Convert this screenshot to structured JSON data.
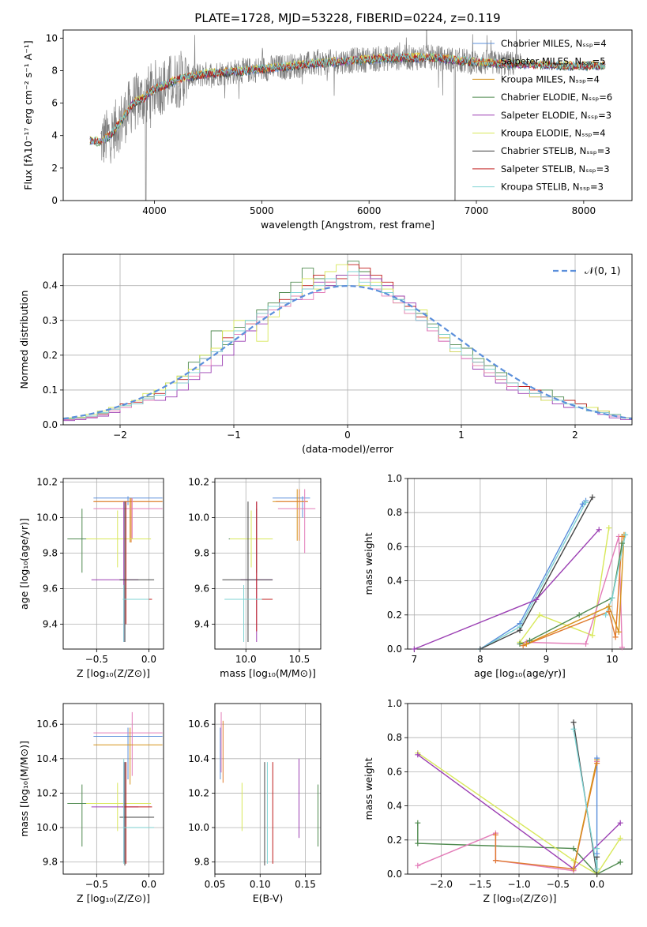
{
  "colors": {
    "Chabrier MILES": "#5b8fdb",
    "Salpeter MILES": "#e07a2e",
    "Kroupa MILES": "#d6921a",
    "Chabrier ELODIE": "#4f8a4f",
    "Salpeter ELODIE": "#9b3fb3",
    "Kroupa ELODIE": "#d8e85a",
    "Chabrier STELIB": "#444444",
    "Salpeter STELIB": "#c01c1c",
    "Kroupa STELIB": "#7fd3d3",
    "normal": "#5b8fdb",
    "pink": "#e37cb8"
  },
  "chart_data": [
    {
      "type": "line",
      "id": "spectrum",
      "title": "PLATE=1728, MJD=53228, FIBERID=0224, z=0.119",
      "xlabel": "wavelength [Angstrom, rest frame]",
      "ylabel": "Flux [fλ10⁻¹⁷ erg cm⁻² s⁻¹ A⁻¹]",
      "xlim": [
        3150,
        8450
      ],
      "ylim": [
        0,
        10.5
      ],
      "xticks": [
        4000,
        5000,
        6000,
        7000,
        8000
      ],
      "yticks": [
        0,
        2,
        4,
        6,
        8,
        10
      ],
      "legend_position": "top-right",
      "legend": [
        "Chabrier MILES, Nₛₛₚ=4",
        "Salpeter MILES, Nₛₛₚ=5",
        "Kroupa MILES, Nₛₛₚ=4",
        "Chabrier ELODIE, Nₛₛₚ=6",
        "Salpeter ELODIE, Nₛₛₚ=3",
        "Kroupa ELODIE, Nₛₛₚ=4",
        "Chabrier STELIB, Nₛₛₚ=3",
        "Salpeter STELIB, Nₛₛₚ=3",
        "Kroupa STELIB, Nₛₛₚ=3"
      ],
      "legend_series": [
        "Chabrier MILES",
        "Salpeter MILES",
        "Kroupa MILES",
        "Chabrier ELODIE",
        "Salpeter ELODIE",
        "Kroupa ELODIE",
        "Chabrier STELIB",
        "Salpeter STELIB",
        "Kroupa STELIB"
      ],
      "data_envelope": {
        "x": [
          3400,
          3500,
          3600,
          3700,
          3800,
          3900,
          4000,
          4100,
          4200,
          4300,
          4500,
          4700,
          5000,
          5300,
          5600,
          6000,
          6300,
          6600,
          7000,
          7400,
          7800,
          8200
        ],
        "y": [
          3.7,
          3.6,
          4.1,
          5.0,
          6.0,
          6.3,
          6.9,
          7.1,
          7.4,
          7.6,
          7.8,
          7.9,
          8.1,
          8.3,
          8.5,
          8.7,
          8.8,
          8.8,
          8.5,
          8.4,
          8.3,
          8.3
        ]
      },
      "model_range": [
        3400,
        8200
      ],
      "data_range": [
        3500,
        7420
      ]
    },
    {
      "type": "bar",
      "id": "residuals",
      "xlabel": "(data-model)/error",
      "ylabel": "Normed distribution",
      "xlim": [
        -2.5,
        2.5
      ],
      "ylim": [
        0,
        0.49
      ],
      "xticks": [
        -2,
        -1,
        0,
        1,
        2
      ],
      "yticks": [
        0.0,
        0.1,
        0.2,
        0.3,
        0.4
      ],
      "legend": [
        "𝒩(0, 1)"
      ],
      "legend_position": "top-right",
      "bin_width": 0.1,
      "bin_start": -2.5
    },
    {
      "type": "scatter",
      "id": "age-vs-Z",
      "xlabel": "Z [log₁₀(Z/Z⊙)]",
      "ylabel": "age  [log₁₀(age/yr)]",
      "xlim": [
        -0.82,
        0.14
      ],
      "ylim": [
        9.26,
        10.22
      ],
      "xticks": [
        -0.5,
        0.0
      ],
      "yticks": [
        9.4,
        9.6,
        9.8,
        10.0,
        10.2
      ]
    },
    {
      "type": "scatter",
      "id": "age-vs-mass",
      "xlabel": "mass [log₁₀(M/M⊙)]",
      "ylabel": "",
      "xlim": [
        9.71,
        10.7
      ],
      "ylim": [
        9.26,
        10.22
      ],
      "xticks": [
        10.0,
        10.5
      ],
      "yticks": [
        9.4,
        9.6,
        9.8,
        10.0,
        10.2
      ]
    },
    {
      "type": "line",
      "id": "weight-vs-age",
      "xlabel": "age  [log₁₀(age/yr)]",
      "ylabel": "mass weight",
      "xlim": [
        6.9,
        10.3
      ],
      "ylim": [
        0,
        1.0
      ],
      "xticks": [
        7,
        8,
        9,
        10
      ],
      "yticks": [
        0.0,
        0.2,
        0.4,
        0.6,
        0.8,
        1.0
      ]
    },
    {
      "type": "scatter",
      "id": "mass-vs-Z",
      "xlabel": "Z [log₁₀(Z/Z⊙)]",
      "ylabel": "mass [log₁₀(M/M⊙)]",
      "xlim": [
        -0.82,
        0.14
      ],
      "ylim": [
        9.73,
        10.72
      ],
      "xticks": [
        -0.5,
        0.0
      ],
      "yticks": [
        9.8,
        10.0,
        10.2,
        10.4,
        10.6
      ]
    },
    {
      "type": "scatter",
      "id": "mass-vs-EBV",
      "xlabel": "E(B-V)",
      "ylabel": "",
      "xlim": [
        0.05,
        0.167
      ],
      "ylim": [
        9.73,
        10.72
      ],
      "xticks": [
        0.05,
        0.1,
        0.15
      ],
      "xticklabels": [
        "0.05",
        "0.10",
        "0.15"
      ],
      "yticks": [
        9.8,
        10.0,
        10.2,
        10.4,
        10.6
      ]
    },
    {
      "type": "line",
      "id": "weight-vs-Z",
      "xlabel": "Z [log₁₀(Z/Z⊙)]",
      "ylabel": "mass weight",
      "xlim": [
        -2.43,
        0.45
      ],
      "ylim": [
        0,
        1.0
      ],
      "xticks": [
        -2.0,
        -1.5,
        -1.0,
        -0.5,
        0.0
      ],
      "yticks": [
        0.0,
        0.2,
        0.4,
        0.6,
        0.8,
        1.0
      ]
    }
  ],
  "residual_hist": {
    "Chabrier ELODIE": [
      0.018,
      0.02,
      0.025,
      0.032,
      0.05,
      0.06,
      0.06,
      0.08,
      0.1,
      0.12,
      0.14,
      0.18,
      0.2,
      0.27,
      0.23,
      0.28,
      0.3,
      0.33,
      0.35,
      0.38,
      0.41,
      0.45,
      0.42,
      0.4,
      0.43,
      0.47,
      0.44,
      0.42,
      0.38,
      0.36,
      0.34,
      0.32,
      0.29,
      0.26,
      0.23,
      0.22,
      0.19,
      0.17,
      0.15,
      0.12,
      0.11,
      0.09,
      0.1,
      0.08,
      0.07,
      0.06,
      0.05,
      0.04,
      0.03,
      0.02
    ],
    "Salpeter STELIB": [
      0.015,
      0.018,
      0.022,
      0.03,
      0.045,
      0.06,
      0.065,
      0.075,
      0.09,
      0.1,
      0.13,
      0.16,
      0.19,
      0.22,
      0.25,
      0.27,
      0.29,
      0.32,
      0.33,
      0.36,
      0.37,
      0.4,
      0.43,
      0.41,
      0.42,
      0.46,
      0.45,
      0.43,
      0.41,
      0.37,
      0.34,
      0.31,
      0.28,
      0.25,
      0.22,
      0.2,
      0.18,
      0.16,
      0.14,
      0.12,
      0.11,
      0.1,
      0.08,
      0.07,
      0.07,
      0.06,
      0.05,
      0.04,
      0.03,
      0.02
    ],
    "Salpeter ELODIE": [
      0.012,
      0.015,
      0.02,
      0.025,
      0.035,
      0.05,
      0.06,
      0.07,
      0.07,
      0.08,
      0.1,
      0.13,
      0.15,
      0.17,
      0.2,
      0.24,
      0.27,
      0.29,
      0.33,
      0.35,
      0.36,
      0.39,
      0.41,
      0.4,
      0.43,
      0.44,
      0.43,
      0.42,
      0.4,
      0.37,
      0.35,
      0.3,
      0.27,
      0.24,
      0.21,
      0.19,
      0.16,
      0.14,
      0.12,
      0.1,
      0.09,
      0.08,
      0.07,
      0.06,
      0.05,
      0.05,
      0.04,
      0.03,
      0.02,
      0.015
    ],
    "Kroupa ELODIE": [
      0.02,
      0.022,
      0.03,
      0.04,
      0.05,
      0.055,
      0.07,
      0.09,
      0.1,
      0.12,
      0.14,
      0.16,
      0.2,
      0.22,
      0.27,
      0.3,
      0.29,
      0.24,
      0.31,
      0.34,
      0.37,
      0.42,
      0.39,
      0.44,
      0.46,
      0.43,
      0.4,
      0.41,
      0.39,
      0.35,
      0.32,
      0.33,
      0.28,
      0.25,
      0.21,
      0.2,
      0.17,
      0.15,
      0.13,
      0.11,
      0.1,
      0.08,
      0.07,
      0.07,
      0.06,
      0.05,
      0.05,
      0.04,
      0.03,
      0.02
    ],
    "Kroupa STELIB": [
      0.017,
      0.02,
      0.025,
      0.035,
      0.045,
      0.055,
      0.06,
      0.075,
      0.085,
      0.1,
      0.12,
      0.15,
      0.19,
      0.21,
      0.24,
      0.27,
      0.3,
      0.32,
      0.34,
      0.35,
      0.38,
      0.39,
      0.4,
      0.42,
      0.4,
      0.44,
      0.41,
      0.4,
      0.38,
      0.36,
      0.33,
      0.3,
      0.28,
      0.26,
      0.22,
      0.2,
      0.18,
      0.16,
      0.14,
      0.12,
      0.1,
      0.09,
      0.08,
      0.07,
      0.06,
      0.05,
      0.04,
      0.035,
      0.03,
      0.02
    ],
    "pink": [
      0.015,
      0.018,
      0.022,
      0.03,
      0.04,
      0.05,
      0.06,
      0.07,
      0.085,
      0.1,
      0.12,
      0.14,
      0.17,
      0.21,
      0.24,
      0.26,
      0.29,
      0.31,
      0.33,
      0.34,
      0.37,
      0.36,
      0.38,
      0.41,
      0.4,
      0.43,
      0.42,
      0.39,
      0.37,
      0.35,
      0.32,
      0.3,
      0.27,
      0.24,
      0.22,
      0.19,
      0.17,
      0.15,
      0.13,
      0.11,
      0.1,
      0.09,
      0.08,
      0.07,
      0.06,
      0.05,
      0.04,
      0.035,
      0.025,
      0.02
    ]
  },
  "crosses": {
    "age_Z": [
      {
        "s": "Chabrier MILES",
        "x": -0.2,
        "xlo": -0.53,
        "xhi": 0.13,
        "y": 10.11,
        "ylo": 10.07,
        "yhi": 10.12
      },
      {
        "s": "Kroupa MILES",
        "x": -0.18,
        "xlo": -0.53,
        "xhi": 0.13,
        "y": 10.09,
        "ylo": 9.86,
        "yhi": 10.11
      },
      {
        "s": "Salpeter MILES",
        "x": -0.17,
        "xlo": -0.53,
        "xhi": 0.13,
        "y": 10.09,
        "ylo": 9.86,
        "yhi": 10.11
      },
      {
        "s": "pink",
        "x": -0.16,
        "xlo": -0.53,
        "xhi": 0.13,
        "y": 10.05,
        "ylo": 9.88,
        "yhi": 10.11
      },
      {
        "s": "Chabrier ELODIE",
        "x": -0.64,
        "xlo": -0.78,
        "xhi": -0.35,
        "y": 9.88,
        "ylo": 9.69,
        "yhi": 10.05
      },
      {
        "s": "Kroupa ELODIE",
        "x": -0.3,
        "xlo": -0.6,
        "xhi": 0.02,
        "y": 9.88,
        "ylo": 9.72,
        "yhi": 10.04
      },
      {
        "s": "Salpeter ELODIE",
        "x": -0.24,
        "xlo": -0.55,
        "xhi": -0.1,
        "y": 9.65,
        "ylo": 9.3,
        "yhi": 10.09
      },
      {
        "s": "Chabrier STELIB",
        "x": -0.23,
        "xlo": -0.28,
        "xhi": 0.05,
        "y": 9.65,
        "ylo": 9.3,
        "yhi": 10.09
      },
      {
        "s": "Salpeter STELIB",
        "x": -0.22,
        "xlo": -0.25,
        "xhi": 0.03,
        "y": 9.54,
        "ylo": 9.4,
        "yhi": 10.09
      },
      {
        "s": "Kroupa STELIB",
        "x": -0.24,
        "xlo": -0.25,
        "xhi": 0.0,
        "y": 9.54,
        "ylo": 9.3,
        "yhi": 9.62
      }
    ],
    "age_mass": [
      {
        "s": "Chabrier MILES",
        "x": 10.53,
        "xlo": 10.25,
        "xhi": 10.6,
        "y": 10.11,
        "ylo": 10.0,
        "yhi": 10.12
      },
      {
        "s": "Kroupa MILES",
        "x": 10.48,
        "xlo": 10.25,
        "xhi": 10.58,
        "y": 10.09,
        "ylo": 9.87,
        "yhi": 10.16
      },
      {
        "s": "Salpeter MILES",
        "x": 10.5,
        "xlo": 10.28,
        "xhi": 10.58,
        "y": 10.09,
        "ylo": 9.87,
        "yhi": 10.16
      },
      {
        "s": "pink",
        "x": 10.55,
        "xlo": 10.3,
        "xhi": 10.65,
        "y": 10.05,
        "ylo": 9.8,
        "yhi": 10.16
      },
      {
        "s": "Chabrier ELODIE",
        "x": 10.1,
        "xlo": 9.84,
        "xhi": 10.25,
        "y": 9.88,
        "ylo": 9.69,
        "yhi": 10.05
      },
      {
        "s": "Kroupa ELODIE",
        "x": 10.05,
        "xlo": 9.85,
        "xhi": 10.25,
        "y": 9.88,
        "ylo": 9.72,
        "yhi": 10.04
      },
      {
        "s": "Salpeter ELODIE",
        "x": 10.1,
        "xlo": 9.95,
        "xhi": 10.25,
        "y": 9.65,
        "ylo": 9.3,
        "yhi": 10.09
      },
      {
        "s": "Chabrier STELIB",
        "x": 10.02,
        "xlo": 9.78,
        "xhi": 10.25,
        "y": 9.65,
        "ylo": 9.3,
        "yhi": 10.09
      },
      {
        "s": "Salpeter STELIB",
        "x": 10.1,
        "xlo": 9.9,
        "xhi": 10.25,
        "y": 9.54,
        "ylo": 9.36,
        "yhi": 10.09
      },
      {
        "s": "Kroupa STELIB",
        "x": 9.98,
        "xlo": 9.8,
        "xhi": 10.15,
        "y": 9.54,
        "ylo": 9.3,
        "yhi": 9.62
      }
    ],
    "mass_Z": [
      {
        "s": "Chabrier MILES",
        "x": -0.2,
        "xlo": -0.53,
        "xhi": 0.13,
        "y": 10.53,
        "ylo": 10.28,
        "yhi": 10.58
      },
      {
        "s": "pink",
        "x": -0.16,
        "xlo": -0.53,
        "xhi": 0.13,
        "y": 10.55,
        "ylo": 10.3,
        "yhi": 10.67
      },
      {
        "s": "Kroupa MILES",
        "x": -0.18,
        "xlo": -0.53,
        "xhi": 0.13,
        "y": 10.48,
        "ylo": 10.25,
        "yhi": 10.58
      },
      {
        "s": "Chabrier ELODIE",
        "x": -0.64,
        "xlo": -0.78,
        "xhi": -0.35,
        "y": 10.14,
        "ylo": 9.89,
        "yhi": 10.25
      },
      {
        "s": "Kroupa ELODIE",
        "x": -0.3,
        "xlo": -0.6,
        "xhi": 0.02,
        "y": 10.14,
        "ylo": 9.98,
        "yhi": 10.26
      },
      {
        "s": "Salpeter ELODIE",
        "x": -0.24,
        "xlo": -0.55,
        "xhi": -0.1,
        "y": 10.12,
        "ylo": 9.8,
        "yhi": 10.38
      },
      {
        "s": "Chabrier STELIB",
        "x": -0.23,
        "xlo": -0.28,
        "xhi": 0.05,
        "y": 10.06,
        "ylo": 9.78,
        "yhi": 10.38
      },
      {
        "s": "Salpeter STELIB",
        "x": -0.22,
        "xlo": -0.25,
        "xhi": 0.03,
        "y": 10.12,
        "ylo": 9.79,
        "yhi": 10.38
      },
      {
        "s": "Kroupa STELIB",
        "x": -0.24,
        "xlo": -0.25,
        "xhi": 0.05,
        "y": 10.0,
        "ylo": 9.79,
        "yhi": 10.4
      }
    ],
    "mass_ebv": [
      {
        "s": "pink",
        "x": 0.057,
        "ylo": 10.32,
        "yhi": 10.67
      },
      {
        "s": "Salpeter MILES",
        "x": 0.059,
        "ylo": 10.26,
        "yhi": 10.62
      },
      {
        "s": "Chabrier MILES",
        "x": 0.056,
        "ylo": 10.28,
        "yhi": 10.58
      },
      {
        "s": "Kroupa ELODIE",
        "x": 0.08,
        "ylo": 9.98,
        "yhi": 10.26
      },
      {
        "s": "Chabrier STELIB",
        "x": 0.105,
        "ylo": 9.78,
        "yhi": 10.38
      },
      {
        "s": "Kroupa STELIB",
        "x": 0.108,
        "ylo": 9.79,
        "yhi": 10.38
      },
      {
        "s": "Salpeter STELIB",
        "x": 0.114,
        "ylo": 9.79,
        "yhi": 10.38
      },
      {
        "s": "Salpeter ELODIE",
        "x": 0.143,
        "ylo": 9.94,
        "yhi": 10.4
      },
      {
        "s": "Chabrier ELODIE",
        "x": 0.164,
        "ylo": 9.89,
        "yhi": 10.25
      }
    ]
  },
  "weights_age": [
    {
      "s": "Chabrier MILES",
      "pts": [
        [
          8.0,
          0.0
        ],
        [
          8.6,
          0.15
        ],
        [
          9.55,
          0.85
        ],
        [
          9.6,
          0.87
        ]
      ]
    },
    {
      "s": "Kroupa STELIB",
      "pts": [
        [
          8.0,
          0.0
        ],
        [
          8.6,
          0.13
        ],
        [
          9.6,
          0.86
        ]
      ]
    },
    {
      "s": "Chabrier STELIB",
      "pts": [
        [
          8.0,
          0.0
        ],
        [
          8.6,
          0.11
        ],
        [
          9.7,
          0.89
        ]
      ]
    },
    {
      "s": "Salpeter ELODIE",
      "pts": [
        [
          7.0,
          0.0
        ],
        [
          8.85,
          0.29
        ],
        [
          9.8,
          0.7
        ]
      ]
    },
    {
      "s": "Kroupa ELODIE",
      "pts": [
        [
          8.6,
          0.04
        ],
        [
          8.9,
          0.2
        ],
        [
          9.7,
          0.08
        ],
        [
          9.95,
          0.71
        ]
      ]
    },
    {
      "s": "pink",
      "pts": [
        [
          8.7,
          0.04
        ],
        [
          9.6,
          0.03
        ],
        [
          10.1,
          0.66
        ],
        [
          10.15,
          0.01
        ]
      ]
    },
    {
      "s": "Salpeter MILES",
      "pts": [
        [
          8.65,
          0.02
        ],
        [
          9.95,
          0.22
        ],
        [
          10.05,
          0.07
        ],
        [
          10.15,
          0.66
        ]
      ]
    },
    {
      "s": "Kroupa MILES",
      "pts": [
        [
          8.7,
          0.03
        ],
        [
          9.95,
          0.25
        ],
        [
          10.1,
          0.1
        ],
        [
          10.18,
          0.67
        ]
      ]
    },
    {
      "s": "Chabrier ELODIE",
      "pts": [
        [
          8.6,
          0.03
        ],
        [
          8.75,
          0.05
        ],
        [
          9.5,
          0.2
        ],
        [
          10.0,
          0.3
        ],
        [
          10.15,
          0.62
        ]
      ]
    },
    {
      "s": "Kroupa STELIB",
      "pts": [
        [
          9.9,
          0.2
        ],
        [
          10.0,
          0.3
        ],
        [
          10.2,
          0.67
        ]
      ]
    }
  ],
  "weights_Z": [
    {
      "s": "Chabrier ELODIE",
      "pts": [
        [
          -2.3,
          0.3
        ],
        [
          -2.3,
          0.18
        ],
        [
          -0.3,
          0.15
        ],
        [
          0.0,
          0.0
        ],
        [
          0.3,
          0.07
        ]
      ]
    },
    {
      "s": "Kroupa ELODIE",
      "pts": [
        [
          -2.3,
          0.71
        ],
        [
          -0.3,
          0.08
        ],
        [
          0.0,
          0.0
        ],
        [
          0.3,
          0.21
        ]
      ]
    },
    {
      "s": "Salpeter ELODIE",
      "pts": [
        [
          -2.3,
          0.7
        ],
        [
          -0.3,
          0.03
        ],
        [
          0.3,
          0.3
        ]
      ]
    },
    {
      "s": "pink",
      "pts": [
        [
          -2.3,
          0.05
        ],
        [
          -1.3,
          0.24
        ],
        [
          -1.3,
          0.08
        ],
        [
          -0.3,
          0.02
        ],
        [
          0.0,
          0.66
        ]
      ]
    },
    {
      "s": "Salpeter MILES",
      "pts": [
        [
          -1.3,
          0.23
        ],
        [
          -1.3,
          0.08
        ],
        [
          -0.3,
          0.03
        ],
        [
          0.0,
          0.65
        ]
      ]
    },
    {
      "s": "Kroupa MILES",
      "pts": [
        [
          -0.3,
          0.03
        ],
        [
          0.0,
          0.67
        ]
      ]
    },
    {
      "s": "Chabrier STELIB",
      "pts": [
        [
          -0.3,
          0.89
        ],
        [
          0.0,
          0.0
        ],
        [
          0.0,
          0.1
        ]
      ]
    },
    {
      "s": "Kroupa STELIB",
      "pts": [
        [
          -0.3,
          0.85
        ],
        [
          0.0,
          0.03
        ],
        [
          0.0,
          0.15
        ]
      ]
    },
    {
      "s": "Chabrier MILES",
      "pts": [
        [
          0.0,
          0.68
        ],
        [
          0.0,
          0.12
        ]
      ]
    }
  ]
}
